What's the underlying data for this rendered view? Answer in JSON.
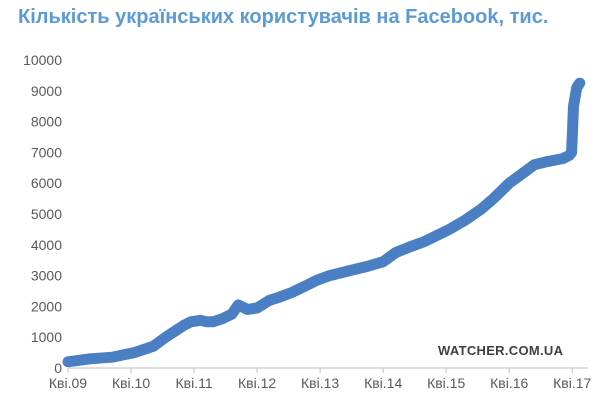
{
  "chart_data": {
    "type": "line",
    "title": "Кількість українських користувачів на Facebook, тис.",
    "source": "WATCHER.COM.UA",
    "xlabel": "",
    "ylabel": "",
    "ylim": [
      0,
      10000
    ],
    "yticks": [
      0,
      1000,
      2000,
      3000,
      4000,
      5000,
      6000,
      7000,
      8000,
      9000,
      10000
    ],
    "xlim": [
      2009.25,
      2017.5
    ],
    "xticks": [
      {
        "x": 2009.25,
        "label": "Кві.09"
      },
      {
        "x": 2010.25,
        "label": "Кві.10"
      },
      {
        "x": 2011.25,
        "label": "Кві.11"
      },
      {
        "x": 2012.25,
        "label": "Кві.12"
      },
      {
        "x": 2013.25,
        "label": "Кві.13"
      },
      {
        "x": 2014.25,
        "label": "Кві.14"
      },
      {
        "x": 2015.25,
        "label": "Кві.15"
      },
      {
        "x": 2016.25,
        "label": "Кві.16"
      },
      {
        "x": 2017.25,
        "label": "Кві.17"
      }
    ],
    "grid": false,
    "color": "#4a7fc4",
    "series": [
      {
        "x": [
          2009.25,
          2009.6,
          2009.95,
          2010.3,
          2010.6,
          2010.8,
          2010.95,
          2011.1,
          2011.2,
          2011.35,
          2011.45,
          2011.55,
          2011.7,
          2011.85,
          2011.95,
          2012.1,
          2012.25,
          2012.45,
          2012.6,
          2012.8,
          2013.0,
          2013.2,
          2013.4,
          2013.6,
          2013.8,
          2014.0,
          2014.25,
          2014.45,
          2014.7,
          2014.9,
          2015.1,
          2015.3,
          2015.55,
          2015.8,
          2016.0,
          2016.25,
          2016.45,
          2016.65,
          2016.85,
          2017.1,
          2017.2,
          2017.24,
          2017.27,
          2017.32,
          2017.37
        ],
        "y": [
          200,
          300,
          350,
          500,
          700,
          1000,
          1200,
          1400,
          1500,
          1550,
          1500,
          1500,
          1600,
          1750,
          2050,
          1900,
          1950,
          2200,
          2300,
          2450,
          2650,
          2850,
          3000,
          3100,
          3200,
          3300,
          3450,
          3750,
          3950,
          4100,
          4300,
          4500,
          4800,
          5150,
          5500,
          6000,
          6300,
          6600,
          6700,
          6800,
          6900,
          7000,
          8500,
          9100,
          9250
        ]
      }
    ]
  }
}
